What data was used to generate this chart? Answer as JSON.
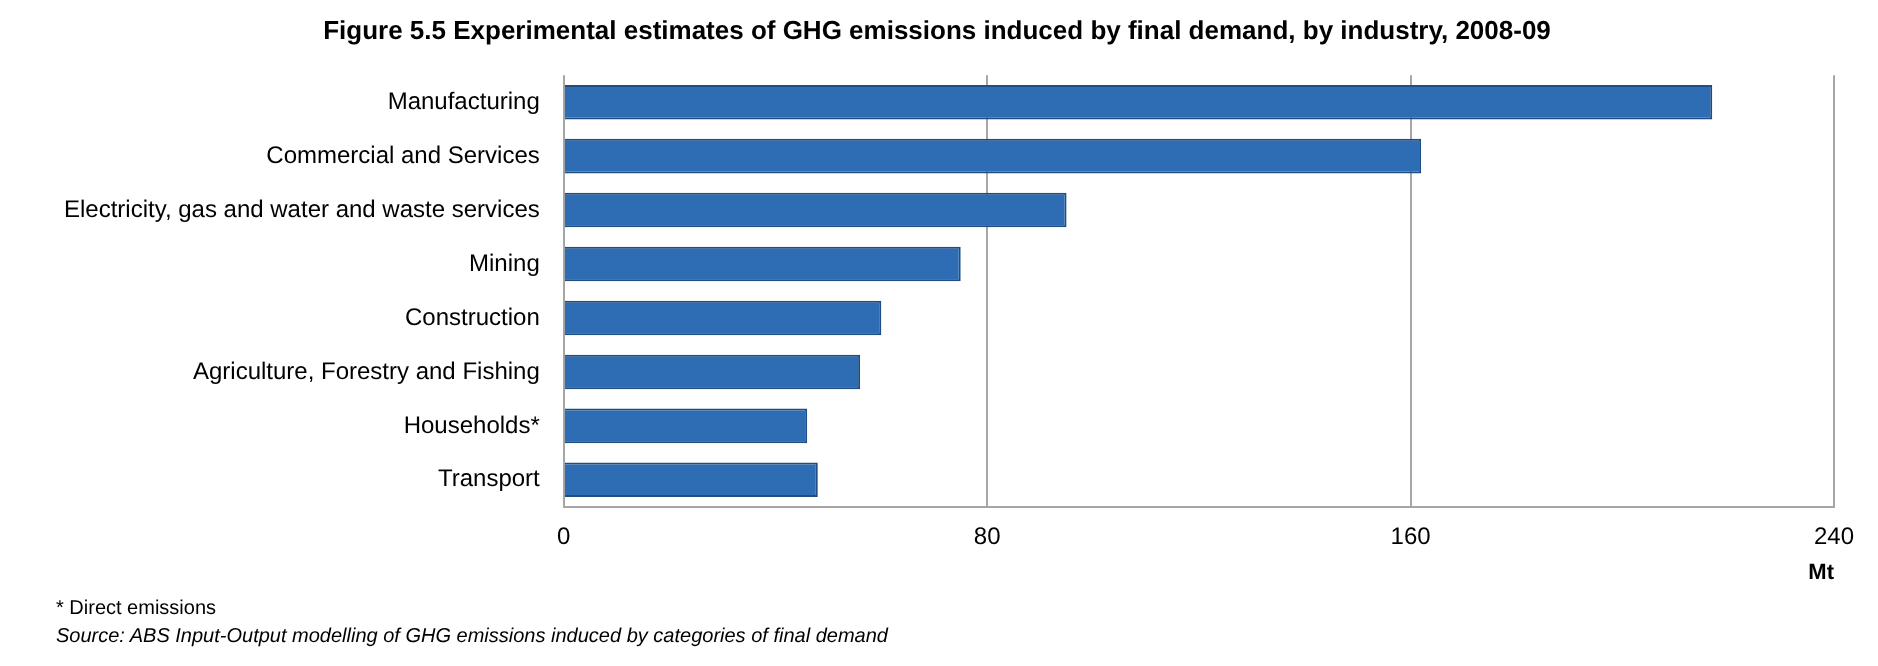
{
  "chart_data": {
    "type": "bar",
    "orientation": "horizontal",
    "title": "Figure 5.5 Experimental estimates of GHG emissions induced by final demand, by industry, 2008-09",
    "categories": [
      "Manufacturing",
      "Commercial and Services",
      "Electricity, gas and water and waste services",
      "Mining",
      "Construction",
      "Agriculture, Forestry and Fishing",
      "Households*",
      "Transport"
    ],
    "values": [
      217,
      162,
      95,
      75,
      60,
      56,
      46,
      48
    ],
    "color": "#2e6db4",
    "xlabel": "Mt",
    "xlim": [
      0,
      240
    ],
    "xticks": [
      0,
      80,
      160,
      240
    ],
    "grid": "x",
    "legend": false,
    "annotations": [
      "* Direct emissions",
      "Source: ABS Input-Output modelling of GHG emissions induced by categories of final demand"
    ]
  }
}
